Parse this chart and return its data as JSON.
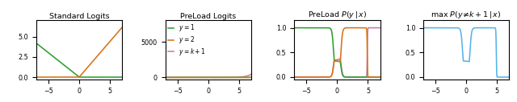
{
  "color_green": "#2ca02c",
  "color_orange": "#d67318",
  "color_pink": "#cc79a7",
  "color_cyan": "#56b4e9",
  "xlim": [
    -7,
    7
  ],
  "titles": [
    "Standard Logits",
    "PreLoad Logits",
    "PreLoad $P(y\\,|\\,x)$",
    "max $P(y\\!\\neq\\!k+1\\,|\\,x)$"
  ],
  "panel1_ylim": [
    -0.3,
    7.0
  ],
  "panel2_ylim": [
    -300,
    8000
  ],
  "panel3_ylim": [
    -0.05,
    1.15
  ],
  "panel4_ylim": [
    -0.05,
    1.15
  ]
}
